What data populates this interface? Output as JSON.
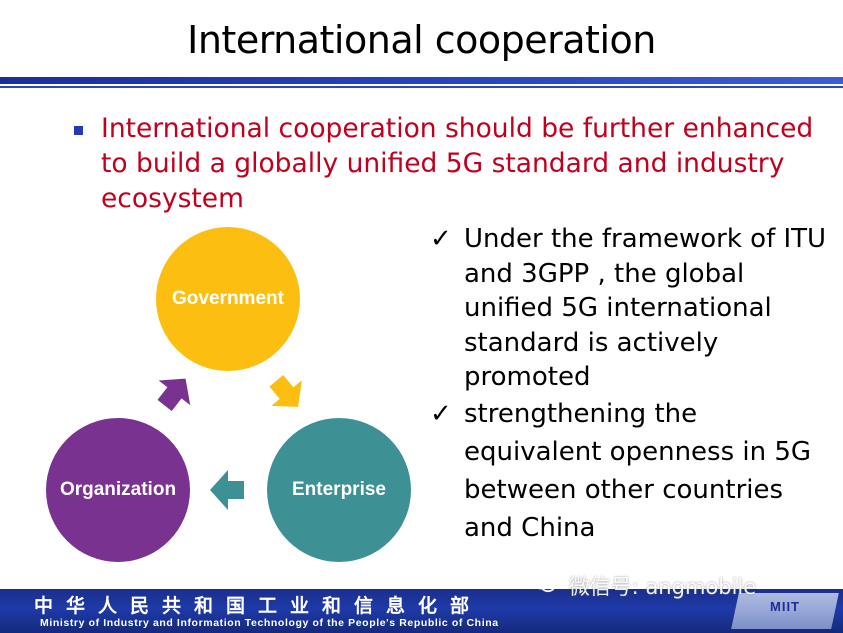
{
  "slide": {
    "title": "International cooperation",
    "main_point": "International cooperation should be further enhanced to build a globally unified 5G standard and industry ecosystem",
    "checks": [
      {
        "mark": "✓",
        "text": "Under the framework of ITU and 3GPP , the global unified 5G international standard is actively promoted"
      },
      {
        "mark": "✓",
        "text": "strengthening the equivalent openness in 5G between other countries and China"
      }
    ]
  },
  "cycle": {
    "government": {
      "label": "Government",
      "color": "#fdbe12"
    },
    "enterprise": {
      "label": "Enterprise",
      "color": "#3d9194"
    },
    "organization": {
      "label": "Organization",
      "color": "#7a3290"
    }
  },
  "footer": {
    "chinese": "中华人民共和国工业和信息化部",
    "english": "Ministry of Industry and Information Technology of the People's Republic of China",
    "badge": "MIIT"
  },
  "watermark": {
    "icon": "wechat-icon",
    "text": "微信号: angmobile"
  },
  "colors": {
    "accent_red": "#c0001f",
    "accent_blue": "#2638b8"
  }
}
